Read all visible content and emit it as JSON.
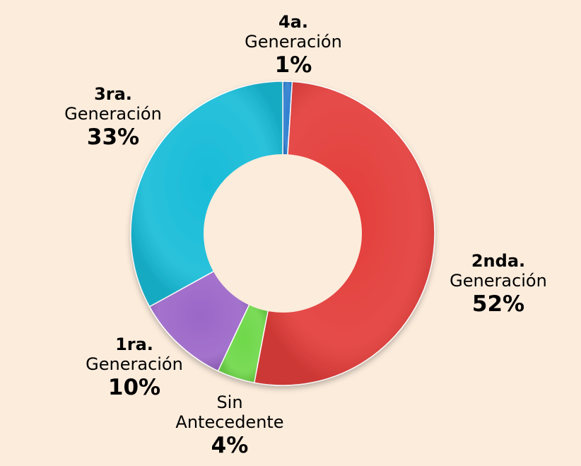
{
  "chart_data": {
    "type": "pie",
    "donut": true,
    "start": "top, clockwise",
    "slices": [
      {
        "l1": "4a.",
        "l2": "Generación",
        "pct": "1%",
        "value": 1,
        "color": "#2f7fd0"
      },
      {
        "l1": "2nda.",
        "l2": "Generación",
        "pct": "52%",
        "value": 52,
        "color": "#e33d3a"
      },
      {
        "l1": "",
        "l2": "Sin Antecedente",
        "pct": "4%",
        "value": 4,
        "color": "#6fd84a"
      },
      {
        "l1": "1ra.",
        "l2": "Generación",
        "pct": "10%",
        "value": 10,
        "color": "#9c67c8"
      },
      {
        "l1": "3ra.",
        "l2": "Generación",
        "pct": "33%",
        "value": 33,
        "color": "#18bcd8"
      }
    ]
  },
  "labels": {
    "g4": {
      "l1": "4a.",
      "l2": "Generación",
      "pct": "1%"
    },
    "g3": {
      "l1": "3ra.",
      "l2": "Generación",
      "pct": "33%"
    },
    "g2": {
      "l1": "2nda.",
      "l2": "Generación",
      "pct": "52%"
    },
    "g1": {
      "l1": "1ra.",
      "l2": "Generación",
      "pct": "10%"
    },
    "sin": {
      "l1": "Sin",
      "l2": "Antecedente",
      "pct": "4%"
    }
  }
}
